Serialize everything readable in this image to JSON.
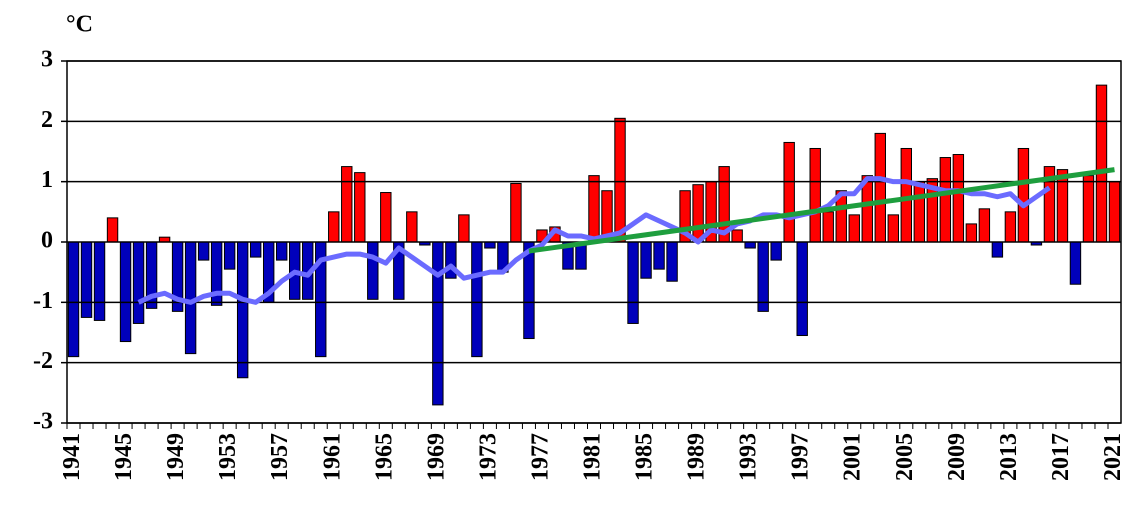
{
  "chart_data": {
    "type": "bar",
    "y_label": "°C",
    "categories": [
      "1941",
      null,
      null,
      null,
      "1945",
      null,
      null,
      null,
      "1949",
      null,
      null,
      null,
      "1953",
      null,
      null,
      null,
      "1957",
      null,
      null,
      null,
      "1961",
      null,
      null,
      null,
      "1965",
      null,
      null,
      null,
      "1969",
      null,
      null,
      null,
      "1973",
      null,
      null,
      null,
      "1977",
      null,
      null,
      null,
      "1981",
      null,
      null,
      null,
      "1985",
      null,
      null,
      null,
      "1989",
      null,
      null,
      null,
      "1993",
      null,
      null,
      null,
      "1997",
      null,
      null,
      null,
      "2001",
      null,
      null,
      null,
      "2005",
      null,
      null,
      null,
      "2009",
      null,
      null,
      null,
      "2013",
      null,
      null,
      null,
      "2017",
      null,
      null,
      null,
      "2021"
    ],
    "values": [
      -1.9,
      -1.25,
      -1.3,
      0.4,
      -1.65,
      -1.35,
      -1.1,
      0.08,
      -1.15,
      -1.85,
      -0.3,
      -1.05,
      -0.45,
      -2.25,
      -0.25,
      -1.0,
      -0.3,
      -0.95,
      -0.95,
      -1.9,
      0.5,
      1.25,
      1.15,
      -0.95,
      0.82,
      -0.95,
      0.5,
      -0.05,
      -2.7,
      -0.6,
      0.45,
      -1.9,
      -0.1,
      -0.5,
      0.97,
      -1.6,
      0.2,
      0.25,
      -0.45,
      -0.45,
      1.1,
      0.85,
      2.05,
      -1.35,
      -0.6,
      -0.45,
      -0.65,
      0.85,
      0.95,
      1.0,
      1.25,
      0.2,
      -0.1,
      -1.15,
      -0.3,
      1.65,
      -1.55,
      1.55,
      0.5,
      0.85,
      0.45,
      1.1,
      1.8,
      0.45,
      1.55,
      1.0,
      1.05,
      1.4,
      1.45,
      0.3,
      0.55,
      -0.25,
      0.5,
      1.55,
      -0.05,
      1.25,
      1.2,
      -0.7,
      1.1,
      2.6,
      1.0
    ],
    "positive_color": "#ff0000",
    "negative_color": "#0000bb",
    "ylim": [
      -3,
      3
    ],
    "yticks": [
      -3,
      -2,
      -1,
      0,
      1,
      2,
      3
    ],
    "grid": true,
    "lines": [
      {
        "color": "#6b6bff",
        "values": [
          null,
          null,
          null,
          null,
          null,
          -1.0,
          -0.9,
          -0.85,
          -0.95,
          -1.0,
          -0.9,
          -0.85,
          -0.85,
          -0.95,
          -1.0,
          -0.85,
          -0.65,
          -0.5,
          -0.55,
          -0.3,
          -0.25,
          -0.2,
          -0.2,
          -0.25,
          -0.35,
          -0.1,
          -0.25,
          -0.4,
          -0.55,
          -0.4,
          -0.6,
          -0.55,
          -0.5,
          -0.5,
          -0.3,
          -0.15,
          -0.05,
          0.2,
          0.1,
          0.1,
          0.05,
          0.1,
          0.15,
          0.3,
          0.45,
          0.35,
          0.25,
          0.15,
          0.0,
          0.2,
          0.15,
          0.3,
          0.35,
          0.45,
          0.45,
          0.4,
          0.45,
          0.5,
          0.6,
          0.8,
          0.8,
          1.05,
          1.05,
          1.0,
          1.0,
          0.95,
          0.9,
          0.85,
          0.85,
          0.8,
          0.8,
          0.75,
          0.8,
          0.6,
          0.75,
          0.9,
          null,
          null,
          null,
          null,
          null
        ]
      },
      {
        "color": "#1e9e3e",
        "x": [
          1976,
          2021
        ],
        "values": [
          -0.15,
          1.2
        ]
      }
    ]
  }
}
